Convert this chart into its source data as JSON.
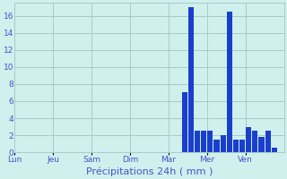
{
  "title": "Précipitations 24h ( mm )",
  "bar_color": "#1a3fcc",
  "background_color": "#cff0ec",
  "grid_color": "#aacaca",
  "text_color": "#4455cc",
  "ylim": [
    0,
    17.5
  ],
  "yticks": [
    0,
    2,
    4,
    6,
    8,
    10,
    12,
    14,
    16
  ],
  "n_bars": 42,
  "bar_values": [
    0,
    0,
    0,
    0,
    0,
    0,
    0,
    0,
    0,
    0,
    0,
    0,
    0,
    0,
    0,
    0,
    0,
    0,
    0,
    0,
    0,
    0,
    0,
    0,
    0,
    0,
    7.0,
    17.0,
    2.5,
    2.5,
    2.5,
    1.5,
    2.0,
    16.5,
    1.5,
    1.5,
    3.0,
    2.5,
    1.8,
    2.5,
    0.5,
    0
  ],
  "day_labels": [
    "Lun",
    "Jeu",
    "Sam",
    "Dim",
    "Mar",
    "Mer",
    "Ven"
  ],
  "day_tick_positions": [
    0,
    6,
    12,
    18,
    24,
    30,
    36
  ],
  "tick_fontsize": 6.5,
  "label_fontsize": 8.0
}
